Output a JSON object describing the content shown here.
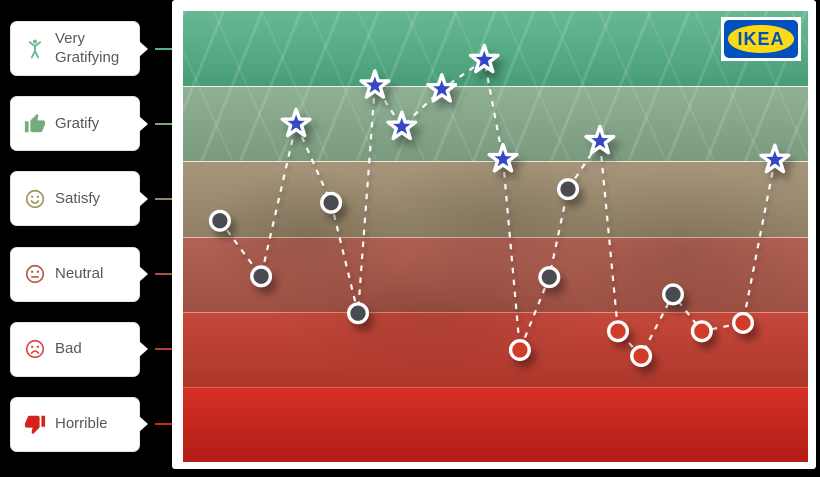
{
  "page": {
    "background_color": "#000000"
  },
  "logo": {
    "text": "IKEA",
    "blue_color": "#0051ba",
    "yellow_color": "#fbd914"
  },
  "legend": {
    "items": [
      {
        "label": "Very Gratifying",
        "icon": "cheering-person-icon",
        "icon_color": "#69bd8f",
        "accent_color": "#52b187"
      },
      {
        "label": "Gratify",
        "icon": "thumbs-up-icon",
        "icon_color": "#74ad7c",
        "accent_color": "#74a97e"
      },
      {
        "label": "Satisfy",
        "icon": "smiley-face-icon",
        "icon_color": "#a4915d",
        "accent_color": "#96855f"
      },
      {
        "label": "Neutral",
        "icon": "neutral-face-icon",
        "icon_color": "#b55a49",
        "accent_color": "#aa5447"
      },
      {
        "label": "Bad",
        "icon": "sad-face-icon",
        "icon_color": "#d54c3d",
        "accent_color": "#c23a2e"
      },
      {
        "label": "Horrible",
        "icon": "thumbs-down-icon",
        "icon_color": "#d62319",
        "accent_color": "#d32317"
      }
    ]
  },
  "chart_data": {
    "type": "line",
    "title": "",
    "y_levels_top_to_bottom": [
      "Very Gratifying",
      "Gratify",
      "Satisfy",
      "Neutral",
      "Bad",
      "Horrible"
    ],
    "band_colors_top_to_bottom": [
      "#4fae83",
      "#88ac8d",
      "#a18f72",
      "#ae594a",
      "#c23d30",
      "#d8251b"
    ],
    "ylim": [
      0,
      6
    ],
    "grid": "horizontal-band-boundaries",
    "line_style": "dashed",
    "line_color": "#ffffff",
    "marker_colors": {
      "star": "#3546c3",
      "filled_circle": "#4a4b51",
      "open_circle": "#d13a2c",
      "outline": "#ffffff"
    },
    "points": [
      {
        "x": 0.059,
        "value": 3.21,
        "marker": "filled-circle"
      },
      {
        "x": 0.125,
        "value": 2.47,
        "marker": "filled-circle"
      },
      {
        "x": 0.181,
        "value": 4.5,
        "marker": "star"
      },
      {
        "x": 0.237,
        "value": 3.45,
        "marker": "filled-circle"
      },
      {
        "x": 0.28,
        "value": 1.98,
        "marker": "filled-circle"
      },
      {
        "x": 0.307,
        "value": 5.01,
        "marker": "star"
      },
      {
        "x": 0.35,
        "value": 4.46,
        "marker": "star"
      },
      {
        "x": 0.414,
        "value": 4.96,
        "marker": "star"
      },
      {
        "x": 0.482,
        "value": 5.35,
        "marker": "star"
      },
      {
        "x": 0.512,
        "value": 4.03,
        "marker": "star"
      },
      {
        "x": 0.539,
        "value": 1.49,
        "marker": "open-circle"
      },
      {
        "x": 0.586,
        "value": 2.46,
        "marker": "filled-circle"
      },
      {
        "x": 0.616,
        "value": 3.63,
        "marker": "filled-circle"
      },
      {
        "x": 0.667,
        "value": 4.27,
        "marker": "star"
      },
      {
        "x": 0.696,
        "value": 1.74,
        "marker": "open-circle"
      },
      {
        "x": 0.733,
        "value": 1.41,
        "marker": "open-circle"
      },
      {
        "x": 0.784,
        "value": 2.23,
        "marker": "filled-circle"
      },
      {
        "x": 0.83,
        "value": 1.74,
        "marker": "open-circle"
      },
      {
        "x": 0.896,
        "value": 1.85,
        "marker": "open-circle"
      },
      {
        "x": 0.947,
        "value": 4.02,
        "marker": "star"
      }
    ]
  }
}
